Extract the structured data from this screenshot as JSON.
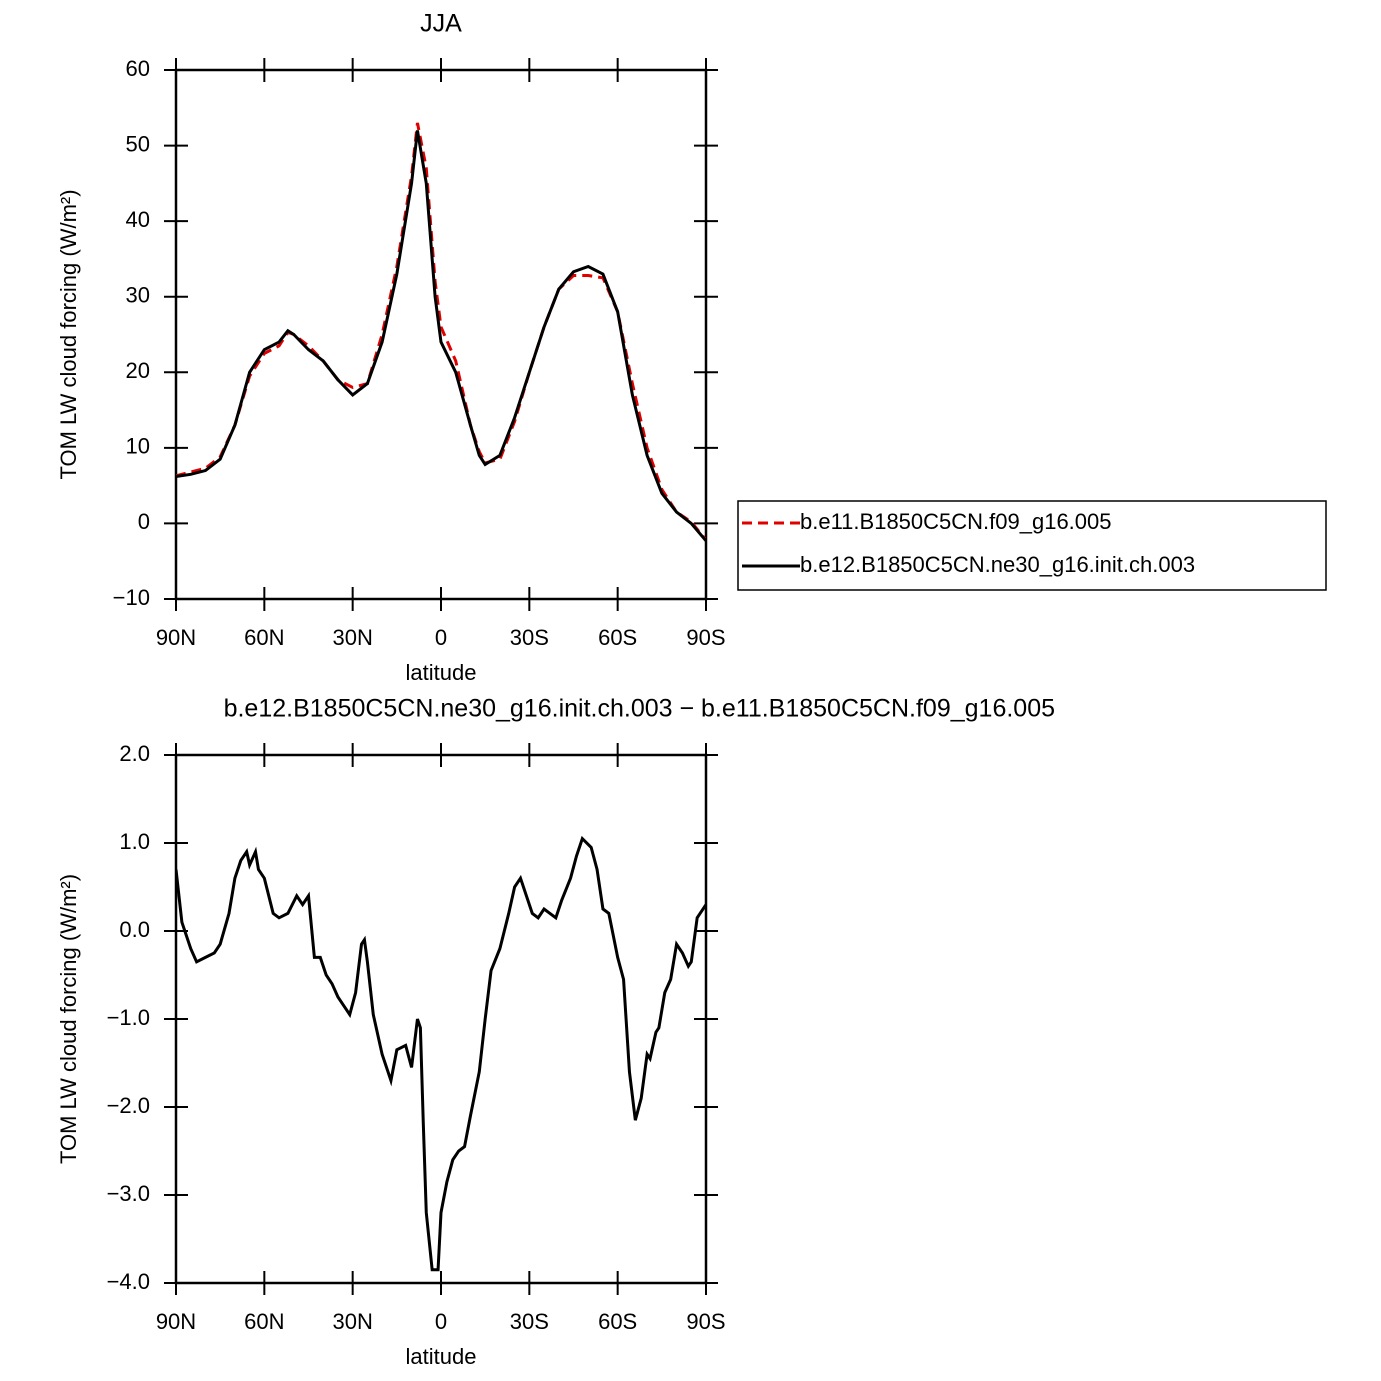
{
  "chart_data": [
    {
      "type": "line",
      "title": "JJA",
      "xlabel": "latitude",
      "ylabel": "TOM LW cloud forcing (W/m²)",
      "x": [
        90,
        85,
        80,
        75,
        70,
        65,
        60,
        55,
        52,
        50,
        45,
        40,
        35,
        30,
        25,
        20,
        15,
        10,
        8,
        5,
        2,
        0,
        -5,
        -10,
        -13,
        -15,
        -20,
        -25,
        -30,
        -35,
        -40,
        -45,
        -50,
        -55,
        -60,
        -65,
        -70,
        -75,
        -80,
        -85,
        -90
      ],
      "series": [
        {
          "name": "b.e11.B1850C5CN.f09_g16.005",
          "color": "#e00000",
          "linestyle": "dashed",
          "values": [
            6.3,
            6.8,
            7.3,
            8.8,
            13,
            19.5,
            22.5,
            23.5,
            25.3,
            25,
            23.5,
            21.5,
            19,
            18,
            18.5,
            25,
            34,
            46,
            53,
            47,
            32,
            26,
            21.5,
            13,
            9.5,
            8,
            8.5,
            13.5,
            20,
            26,
            31,
            32.8,
            32.8,
            32.5,
            28,
            18.5,
            10,
            4.5,
            1.5,
            0.2,
            -2.2
          ]
        },
        {
          "name": "b.e12.B1850C5CN.ne30_g16.init.ch.003",
          "color": "#000000",
          "linestyle": "solid",
          "values": [
            6.2,
            6.5,
            7,
            8.5,
            13,
            20,
            23,
            24,
            25.5,
            25,
            23,
            21.5,
            19,
            17,
            18.5,
            24,
            33,
            45,
            52,
            45,
            30,
            24,
            20,
            13,
            9,
            7.8,
            9,
            14,
            20,
            26,
            31,
            33.3,
            34,
            33,
            28,
            17,
            9,
            4,
            1.5,
            0,
            -2.3
          ]
        }
      ],
      "xlim": [
        90,
        -90
      ],
      "xticks": [
        {
          "value": 90,
          "label": "90N"
        },
        {
          "value": 60,
          "label": "60N"
        },
        {
          "value": 30,
          "label": "30N"
        },
        0,
        {
          "value": -30,
          "label": "30S"
        },
        {
          "value": -60,
          "label": "60S"
        },
        {
          "value": -90,
          "label": "90S"
        }
      ],
      "ylim": [
        -10,
        60
      ],
      "yticks": [
        {
          "value": -10,
          "label": "−10"
        },
        0,
        10,
        20,
        30,
        40,
        50,
        60
      ],
      "legend": "right"
    },
    {
      "type": "line",
      "title": "b.e12.B1850C5CN.ne30_g16.init.ch.003 − b.e11.B1850C5CN.f09_g16.005",
      "xlabel": "latitude",
      "ylabel": "TOM LW cloud forcing (W/m²)",
      "x": [
        90,
        88,
        85,
        83,
        80,
        77,
        75,
        72,
        70,
        68,
        66,
        65,
        63,
        62,
        60,
        57,
        55,
        52,
        49,
        47,
        45,
        43,
        41,
        39,
        37,
        35,
        33,
        31,
        29,
        27,
        26,
        25,
        23,
        20,
        17,
        15,
        12,
        10,
        8,
        7,
        6,
        5,
        3,
        1,
        0,
        -2,
        -4,
        -6,
        -8,
        -10,
        -13,
        -15,
        -17,
        -20,
        -23,
        -25,
        -27,
        -29,
        -31,
        -33,
        -35,
        -37,
        -39,
        -41,
        -44,
        -46,
        -48,
        -51,
        -53,
        -55,
        -57,
        -60,
        -62,
        -64,
        -66,
        -68,
        -70,
        -71,
        -73,
        -74,
        -76,
        -78,
        -80,
        -82,
        -84,
        -85,
        -87,
        -90
      ],
      "values": [
        0.7,
        0.1,
        -0.2,
        -0.35,
        -0.3,
        -0.25,
        -0.15,
        0.2,
        0.6,
        0.8,
        0.9,
        0.75,
        0.9,
        0.7,
        0.6,
        0.2,
        0.15,
        0.2,
        0.4,
        0.3,
        0.4,
        -0.3,
        -0.3,
        -0.5,
        -0.6,
        -0.75,
        -0.85,
        -0.95,
        -0.7,
        -0.15,
        -0.1,
        -0.35,
        -0.95,
        -1.4,
        -1.7,
        -1.35,
        -1.3,
        -1.55,
        -1.0,
        -1.1,
        -2.2,
        -3.2,
        -3.85,
        -3.85,
        -3.2,
        -2.85,
        -2.6,
        -2.5,
        -2.45,
        -2.1,
        -1.6,
        -1.0,
        -0.45,
        -0.2,
        0.2,
        0.5,
        0.6,
        0.4,
        0.2,
        0.15,
        0.25,
        0.2,
        0.15,
        0.35,
        0.6,
        0.85,
        1.05,
        0.95,
        0.7,
        0.25,
        0.2,
        -0.3,
        -0.55,
        -1.6,
        -2.15,
        -1.9,
        -1.4,
        -1.45,
        -1.15,
        -1.1,
        -0.7,
        -0.55,
        -0.15,
        -0.25,
        -0.4,
        -0.35,
        0.15,
        0.3
      ],
      "color": "#000000",
      "linestyle": "solid",
      "xlim": [
        90,
        -90
      ],
      "xticks": [
        {
          "value": 90,
          "label": "90N"
        },
        {
          "value": 60,
          "label": "60N"
        },
        {
          "value": 30,
          "label": "30N"
        },
        0,
        {
          "value": -30,
          "label": "30S"
        },
        {
          "value": -60,
          "label": "60S"
        },
        {
          "value": -90,
          "label": "90S"
        }
      ],
      "ylim": [
        -4,
        2
      ],
      "yticks": [
        {
          "value": -4,
          "label": "−4.0"
        },
        {
          "value": -3,
          "label": "−3.0"
        },
        {
          "value": -2,
          "label": "−2.0"
        },
        {
          "value": -1,
          "label": "−1.0"
        },
        {
          "value": 0,
          "label": "0.0"
        },
        {
          "value": 1,
          "label": "1.0"
        },
        {
          "value": 2,
          "label": "2.0"
        }
      ]
    }
  ]
}
